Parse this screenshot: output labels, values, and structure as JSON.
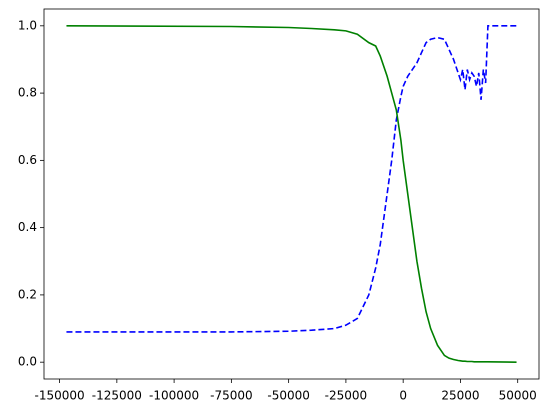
{
  "chart_data": {
    "type": "line",
    "x": [
      -147000,
      -75000,
      -50000,
      -40000,
      -30000,
      -25000,
      -20000,
      -15000,
      -12000,
      -10000,
      -7000,
      -5000,
      -3000,
      -1000,
      0,
      2000,
      4000,
      6000,
      8000,
      10000,
      12000,
      15000,
      18000,
      20000,
      22000,
      24000,
      25000,
      26000,
      27000,
      28000,
      29000,
      30000,
      31000,
      32000,
      33000,
      34000,
      35000,
      36000,
      37000,
      49500
    ],
    "series": [
      {
        "color": "#0000ff",
        "linestyle": "--",
        "values": [
          0.09,
          0.09,
          0.092,
          0.095,
          0.1,
          0.11,
          0.13,
          0.2,
          0.28,
          0.35,
          0.5,
          0.6,
          0.72,
          0.79,
          0.82,
          0.85,
          0.87,
          0.89,
          0.92,
          0.95,
          0.96,
          0.965,
          0.96,
          0.93,
          0.9,
          0.86,
          0.84,
          0.87,
          0.81,
          0.87,
          0.84,
          0.86,
          0.85,
          0.82,
          0.86,
          0.78,
          0.87,
          0.83,
          1.0,
          1.0
        ]
      },
      {
        "color": "#008000",
        "linestyle": "-",
        "values": [
          1.0,
          0.998,
          0.995,
          0.992,
          0.988,
          0.985,
          0.975,
          0.95,
          0.94,
          0.91,
          0.85,
          0.8,
          0.75,
          0.66,
          0.6,
          0.5,
          0.4,
          0.3,
          0.22,
          0.15,
          0.1,
          0.05,
          0.02,
          0.012,
          0.008,
          0.005,
          0.004,
          0.003,
          0.003,
          0.002,
          0.002,
          0.002,
          0.001,
          0.001,
          0.001,
          0.001,
          0.001,
          0.001,
          0.001,
          0.0
        ]
      }
    ],
    "xlim": [
      -156800,
      59300
    ],
    "xticks": [
      -150000,
      -125000,
      -100000,
      -75000,
      -50000,
      -25000,
      0,
      25000,
      50000
    ],
    "ylim": [
      -0.05,
      1.05
    ],
    "yticks": [
      {
        "value": 0,
        "label": "0.0"
      },
      0.2,
      0.4,
      0.6,
      0.8,
      {
        "value": 1,
        "label": "1.0"
      }
    ]
  }
}
